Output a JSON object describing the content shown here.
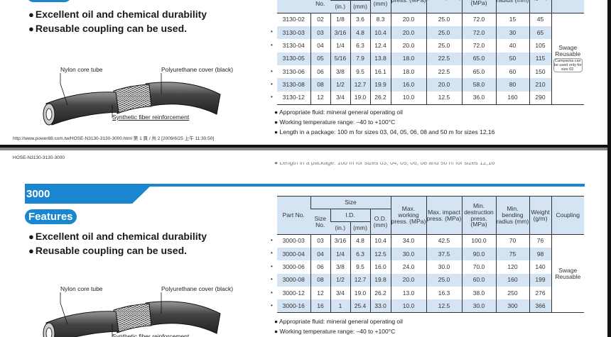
{
  "features": [
    "Excellent oil and chemical durability",
    "Reusable coupling can be used."
  ],
  "diagram": {
    "core": "Nylon core tube",
    "cover": "Polyurethane cover (black)",
    "reinforcement": "Synthetic fiber reinforcement"
  },
  "headers": {
    "part_no": "Part No.",
    "size": "Size",
    "size_no": "Size No.",
    "id": "I.D.",
    "in": "(in.)",
    "mm": "(mm)",
    "od": "O.D.",
    "od_mm": "(mm)",
    "max_working": "Max. working press. (MPa)",
    "max_impact": "Max. impact press. (MPa)",
    "min_destruction": "Min. destruction press. (MPa)",
    "min_bending": "Min. bending radius (mm)",
    "weight": "Weight (g/m)",
    "coupling": "Coupling"
  },
  "page1": {
    "rows": [
      {
        "dot": false,
        "cells": [
          "3130-02",
          "02",
          "1/8",
          "3.6",
          "8.3",
          "20.0",
          "25.0",
          "72.0",
          "15",
          "45"
        ]
      },
      {
        "dot": true,
        "cells": [
          "3130-03",
          "03",
          "3/16",
          "4.8",
          "10.4",
          "20.0",
          "25.0",
          "72.0",
          "30",
          "65"
        ]
      },
      {
        "dot": true,
        "cells": [
          "3130-04",
          "04",
          "1/4",
          "6.3",
          "12.4",
          "20.0",
          "25.0",
          "72.0",
          "40",
          "105"
        ]
      },
      {
        "dot": false,
        "cells": [
          "3130-05",
          "05",
          "5/16",
          "7.9",
          "13.8",
          "18.0",
          "22.5",
          "65.0",
          "50",
          "115"
        ]
      },
      {
        "dot": true,
        "cells": [
          "3130-06",
          "06",
          "3/8",
          "9.5",
          "16.1",
          "18.0",
          "22.5",
          "65.0",
          "60",
          "150"
        ]
      },
      {
        "dot": true,
        "cells": [
          "3130-08",
          "08",
          "1/2",
          "12.7",
          "19.9",
          "16.0",
          "20.0",
          "58.0",
          "80",
          "210"
        ]
      },
      {
        "dot": true,
        "cells": [
          "3130-12",
          "12",
          "3/4",
          "19.0",
          "26.2",
          "10.0",
          "12.5",
          "36.0",
          "160",
          "290"
        ]
      }
    ],
    "coupling": "Swage Reusable",
    "coupling_note": "Campacka can be used only for size 02.",
    "notes": [
      "● Appropriate fluid: mineral general operating oil",
      "● Working temperature range: –40 to +100°C",
      "● Length in a package: 100 m for sizes 03, 04, 05, 06, 08 and 50 m for sizes 12,16"
    ],
    "footer": "http://www.power88.com.tw/HOSE-N3130-3130-3000.html 第 1 頁 / 共 2 [2009/6/25 上午 11:30:50]"
  },
  "page2": {
    "header": "HOSE-N3130-3130-3000",
    "cut_note": "● Length in a package: 100 m for sizes 03, 04, 05, 06, 08 and 50 m for sizes 12,16",
    "section": "3000",
    "features_label": "Features",
    "rows": [
      {
        "dot": true,
        "cells": [
          "3000-03",
          "03",
          "3/16",
          "4.8",
          "10.4",
          "34.0",
          "42.5",
          "100.0",
          "70",
          "76"
        ]
      },
      {
        "dot": true,
        "cells": [
          "3000-04",
          "04",
          "1/4",
          "6.3",
          "12.5",
          "30.0",
          "37.5",
          "90.0",
          "75",
          "98"
        ]
      },
      {
        "dot": true,
        "cells": [
          "3000-06",
          "06",
          "3/8",
          "9.5",
          "16.0",
          "24.0",
          "30.0",
          "70.0",
          "120",
          "140"
        ]
      },
      {
        "dot": true,
        "cells": [
          "3000-08",
          "08",
          "1/2",
          "12.7",
          "19.8",
          "20.0",
          "25.0",
          "60.0",
          "160",
          "199"
        ]
      },
      {
        "dot": true,
        "cells": [
          "3000-12",
          "12",
          "3/4",
          "19.0",
          "26.2",
          "13.0",
          "16.3",
          "38.0",
          "250",
          "276"
        ]
      },
      {
        "dot": true,
        "cells": [
          "3000-16",
          "16",
          "1",
          "25.4",
          "33.0",
          "10.0",
          "12.5",
          "30.0",
          "300",
          "366"
        ]
      }
    ],
    "coupling": "Swage Reusable",
    "notes": [
      "● Appropriate fluid: mineral general operating oil",
      "● Working temperature range: –40 to +100°C"
    ]
  },
  "colors": {
    "accent": "#1a86d0",
    "row_shade": "#d5e4f3"
  }
}
